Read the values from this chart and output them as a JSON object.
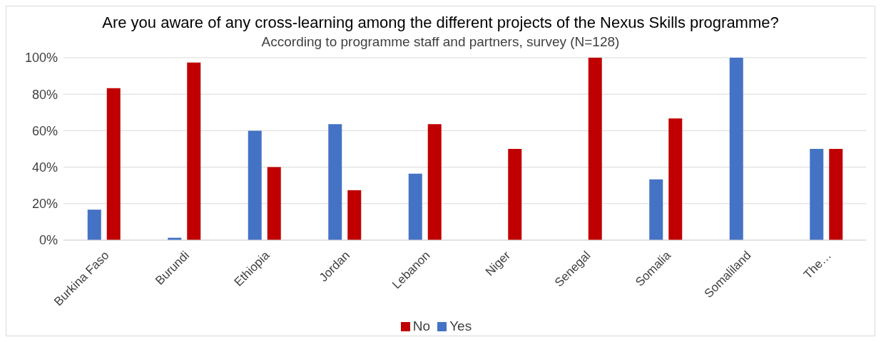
{
  "chart_data": {
    "type": "bar",
    "title": "Are you aware of any cross-learning among the different projects of the Nexus Skills programme?",
    "subtitle": "According to programme staff and partners, survey (N=128)",
    "categories": [
      "Burkina Faso",
      "Burundi",
      "Ethiopia",
      "Jordan",
      "Lebanon",
      "Niger",
      "Senegal",
      "Somalia",
      "Somaliland",
      "The…"
    ],
    "series": [
      {
        "name": "Yes",
        "color": "#4472c4",
        "values": [
          16.7,
          1.3,
          60,
          63.6,
          36.4,
          0,
          0,
          33.3,
          100,
          50
        ]
      },
      {
        "name": "No",
        "color": "#c00000",
        "values": [
          83.3,
          97.4,
          40,
          27.3,
          63.6,
          50,
          100,
          66.7,
          0,
          50
        ]
      }
    ],
    "ylim": [
      0,
      100
    ],
    "yticks": [
      {
        "value": 0,
        "label": "0%"
      },
      {
        "value": 20,
        "label": "20%"
      },
      {
        "value": 40,
        "label": "40%"
      },
      {
        "value": 60,
        "label": "60%"
      },
      {
        "value": 80,
        "label": "80%"
      },
      {
        "value": 100,
        "label": "100%"
      }
    ],
    "grid": "y",
    "legend": "bottom"
  }
}
